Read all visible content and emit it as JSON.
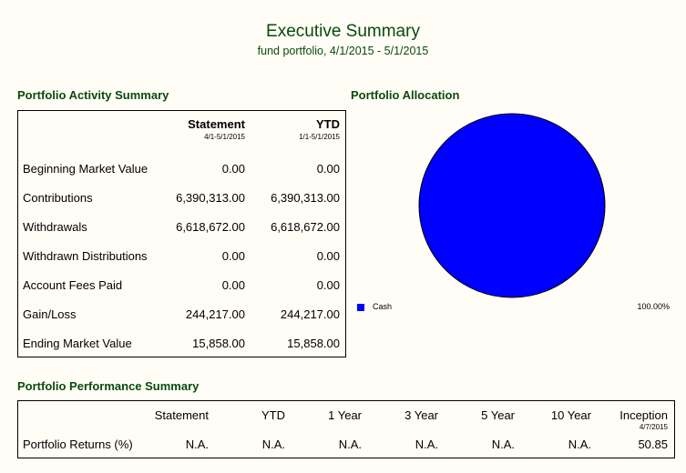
{
  "header": {
    "title": "Executive Summary",
    "subtitle": "fund portfolio, 4/1/2015 - 5/1/2015"
  },
  "activity": {
    "heading": "Portfolio Activity Summary",
    "columns": [
      {
        "label": "Statement",
        "sub": "4/1-5/1/2015"
      },
      {
        "label": "YTD",
        "sub": "1/1-5/1/2015"
      }
    ],
    "rows": [
      {
        "label": "Beginning Market Value",
        "statement": "0.00",
        "ytd": "0.00"
      },
      {
        "label": "Contributions",
        "statement": "6,390,313.00",
        "ytd": "6,390,313.00"
      },
      {
        "label": "Withdrawals",
        "statement": "6,618,672.00",
        "ytd": "6,618,672.00"
      },
      {
        "label": "Withdrawn Distributions",
        "statement": "0.00",
        "ytd": "0.00"
      },
      {
        "label": "Account Fees Paid",
        "statement": "0.00",
        "ytd": "0.00"
      },
      {
        "label": "Gain/Loss",
        "statement": "244,217.00",
        "ytd": "244,217.00"
      },
      {
        "label": "Ending Market Value",
        "statement": "15,858.00",
        "ytd": "15,858.00"
      }
    ]
  },
  "allocation": {
    "heading": "Portfolio Allocation",
    "legend": [
      {
        "label": "Cash",
        "percent": "100.00%",
        "color": "#0000ff"
      }
    ]
  },
  "chart_data": {
    "type": "pie",
    "categories": [
      "Cash"
    ],
    "values": [
      100.0
    ],
    "colors": [
      "#0000ff"
    ],
    "legend_position": "bottom"
  },
  "performance": {
    "heading": "Portfolio Performance Summary",
    "columns": [
      "Statement",
      "YTD",
      "1 Year",
      "3 Year",
      "5 Year",
      "10 Year",
      "Inception"
    ],
    "inception_date": "4/7/2015",
    "row": {
      "label": "Portfolio Returns (%)",
      "values": [
        "N.A.",
        "N.A.",
        "N.A.",
        "N.A.",
        "N.A.",
        "N.A.",
        "50.85"
      ]
    }
  }
}
